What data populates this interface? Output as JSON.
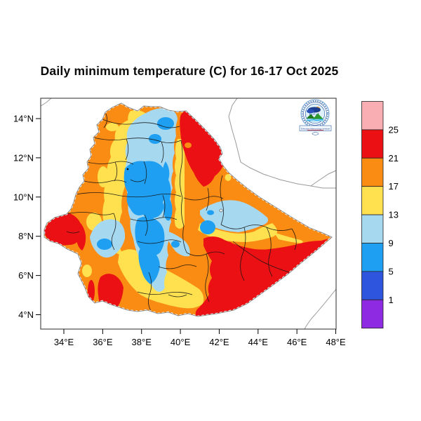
{
  "title": "Daily minimum temperature (C) for 16-17 Oct 2025",
  "logo": {
    "name": "Ethiopian Meteorology Institute logo",
    "banner_text": "Ethiopian Meteorology Institute"
  },
  "chart_data": {
    "type": "heatmap",
    "subtype": "filled-contour-temperature-map",
    "region": "Ethiopia (with admin-zone boundaries, neighbouring borders in gray)",
    "variable": "Daily minimum temperature",
    "units": "C",
    "date_range": "16-17 Oct 2025",
    "title": "Daily minimum temperature (C) for 16-17 Oct 2025",
    "grid": false,
    "x_axis": {
      "tick_values": [
        34,
        36,
        38,
        40,
        42,
        44,
        46,
        48
      ],
      "tick_labels": [
        "34°E",
        "36°E",
        "38°E",
        "40°E",
        "42°E",
        "44°E",
        "46°E",
        "48°E"
      ],
      "range_lon": [
        32.8,
        48.0
      ]
    },
    "y_axis": {
      "tick_values": [
        14,
        12,
        10,
        8,
        6,
        4
      ],
      "tick_labels": [
        "14°N",
        "12°N",
        "10°N",
        "8°N",
        "6°N",
        "4°N"
      ],
      "range_lat": [
        3.2,
        15.1
      ]
    },
    "legend": {
      "position": "right",
      "boundary_labels": [
        "25",
        "21",
        "17",
        "13",
        "9",
        "5",
        "1"
      ],
      "bands_top_to_bottom": [
        {
          "range": "above 25",
          "color": "#f9aeb4"
        },
        {
          "range": "21 to 25",
          "color": "#ea1013"
        },
        {
          "range": "17 to 21",
          "color": "#fa8b13"
        },
        {
          "range": "13 to 17",
          "color": "#ffe14f"
        },
        {
          "range": "9 to 13",
          "color": "#a6d8f0"
        },
        {
          "range": "5 to 9",
          "color": "#1e9ff2"
        },
        {
          "range": "1 to 5",
          "color": "#2d55dd"
        },
        {
          "range": "below 1",
          "color": "#8e2be2"
        }
      ]
    },
    "zones": [
      {
        "area": "northwest and west lowland margin",
        "tmin_band_c": "17-21"
      },
      {
        "area": "central-north highlands (long N-S belt)",
        "tmin_band_c": "9-13 with cores of 5-9"
      },
      {
        "area": "belt between west margin and highlands, and south-central plateau",
        "tmin_band_c": "13-17"
      },
      {
        "area": "Afar / northeast lowland wedge along Eritrea-Djibouti border",
        "tmin_band_c": "21-25"
      },
      {
        "area": "east-central band (~9N, 40-44E)",
        "tmin_band_c": "9-13 narrow band with 13-17 fringe"
      },
      {
        "area": "southeastern lowlands toward Somalia border",
        "tmin_band_c": "21-25"
      },
      {
        "area": "far-west Gambela protrusion",
        "tmin_band_c": "21-25"
      },
      {
        "area": "southwest (South Omo) pocket and south border strip",
        "tmin_band_c": "21-25 pockets in 17-21"
      }
    ]
  }
}
